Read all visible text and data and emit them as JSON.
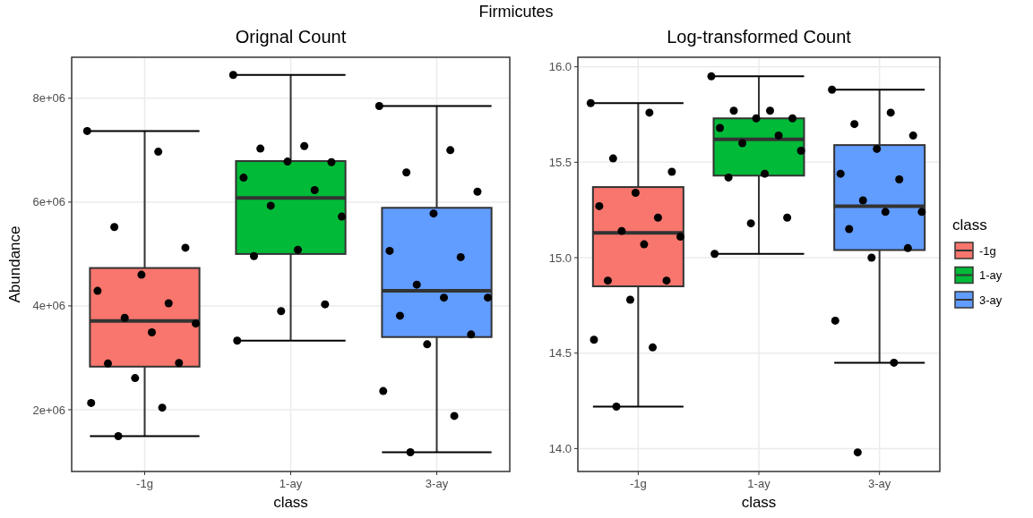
{
  "chart_data": [
    {
      "type": "box",
      "title": "Orignal Count",
      "xlabel": "class",
      "ylabel": "Abundance",
      "annotations": [
        "Firmicutes"
      ],
      "categories": [
        "-1g",
        "1-ay",
        "3-ay"
      ],
      "ylim": [
        810000,
        8790000
      ],
      "yticks": [
        {
          "value": 2000000,
          "label": "2e+06"
        },
        {
          "value": 4000000,
          "label": "4e+06"
        },
        {
          "value": 6000000,
          "label": "6e+06"
        },
        {
          "value": 8000000,
          "label": "8e+06"
        }
      ],
      "grid": true,
      "series": [
        {
          "type": "box",
          "colors": [
            "#f8766d",
            "#00ba38",
            "#619cff"
          ],
          "boxes": [
            {
              "low": 1490000,
              "q1": 2830000,
              "median": 3710000,
              "q3": 4730000,
              "high": 7370000
            },
            {
              "low": 3330000,
              "q1": 5000000,
              "median": 6080000,
              "q3": 6790000,
              "high": 8450000
            },
            {
              "low": 1180000,
              "q1": 3400000,
              "median": 4290000,
              "q3": 5890000,
              "high": 7850000
            }
          ]
        },
        {
          "type": "scatter",
          "color": "#000000",
          "x": [
            "-1g",
            "-1g",
            "-1g",
            "-1g",
            "-1g",
            "-1g",
            "-1g",
            "-1g",
            "-1g",
            "-1g",
            "-1g",
            "-1g",
            "-1g",
            "-1g",
            "-1g",
            "-1g",
            "1-ay",
            "1-ay",
            "1-ay",
            "1-ay",
            "1-ay",
            "1-ay",
            "1-ay",
            "1-ay",
            "1-ay",
            "1-ay",
            "1-ay",
            "1-ay",
            "1-ay",
            "1-ay",
            "3-ay",
            "3-ay",
            "3-ay",
            "3-ay",
            "3-ay",
            "3-ay",
            "3-ay",
            "3-ay",
            "3-ay",
            "3-ay",
            "3-ay",
            "3-ay",
            "3-ay",
            "3-ay",
            "3-ay",
            "3-ay"
          ],
          "values": [
            7370000,
            6970000,
            5520000,
            5120000,
            4600000,
            4290000,
            4050000,
            3770000,
            3660000,
            3490000,
            2890000,
            2900000,
            2610000,
            2130000,
            2040000,
            1490000,
            8450000,
            7080000,
            7030000,
            6770000,
            6780000,
            6470000,
            6230000,
            5930000,
            5720000,
            5080000,
            4960000,
            4030000,
            3900000,
            3330000,
            7850000,
            7000000,
            6570000,
            6200000,
            5780000,
            5060000,
            4940000,
            4410000,
            4160000,
            4160000,
            3810000,
            3450000,
            3260000,
            2360000,
            1880000,
            1180000
          ]
        }
      ]
    },
    {
      "type": "box",
      "title": "Log-transformed Count",
      "xlabel": "class",
      "legend": "right",
      "legend_title": "class",
      "categories": [
        "-1g",
        "1-ay",
        "3-ay"
      ],
      "ylim": [
        13.88,
        16.05
      ],
      "yticks": [
        {
          "value": 14,
          "label": "14.0"
        },
        14.5,
        {
          "value": 15,
          "label": "15.0"
        },
        15.5,
        {
          "value": 16,
          "label": "16.0"
        }
      ],
      "grid": true,
      "series": [
        {
          "type": "box",
          "name": "-1g",
          "color": "#f8766d",
          "boxes": [
            {
              "low": 14.22,
              "q1": 14.85,
              "median": 15.13,
              "q3": 15.37,
              "high": 15.81
            },
            null,
            null
          ]
        },
        {
          "type": "box",
          "name": "1-ay",
          "color": "#00ba38",
          "boxes": [
            null,
            {
              "low": 15.02,
              "q1": 15.43,
              "median": 15.62,
              "q3": 15.73,
              "high": 15.95
            },
            null
          ]
        },
        {
          "type": "box",
          "name": "3-ay",
          "color": "#619cff",
          "boxes": [
            null,
            null,
            {
              "low": 14.45,
              "q1": 15.04,
              "median": 15.27,
              "q3": 15.59,
              "high": 15.88
            }
          ]
        },
        {
          "type": "scatter",
          "color": "#000000",
          "x": [
            "-1g",
            "-1g",
            "-1g",
            "-1g",
            "-1g",
            "-1g",
            "-1g",
            "-1g",
            "-1g",
            "-1g",
            "-1g",
            "-1g",
            "-1g",
            "-1g",
            "-1g",
            "-1g",
            "1-ay",
            "1-ay",
            "1-ay",
            "1-ay",
            "1-ay",
            "1-ay",
            "1-ay",
            "1-ay",
            "1-ay",
            "1-ay",
            "1-ay",
            "1-ay",
            "1-ay",
            "1-ay",
            "3-ay",
            "3-ay",
            "3-ay",
            "3-ay",
            "3-ay",
            "3-ay",
            "3-ay",
            "3-ay",
            "3-ay",
            "3-ay",
            "3-ay",
            "3-ay",
            "3-ay",
            "3-ay",
            "3-ay",
            "3-ay"
          ],
          "values": [
            15.81,
            15.76,
            15.52,
            15.45,
            15.34,
            15.27,
            15.21,
            15.14,
            15.11,
            15.07,
            14.88,
            14.88,
            14.78,
            14.57,
            14.53,
            14.22,
            15.95,
            15.77,
            15.77,
            15.73,
            15.73,
            15.68,
            15.64,
            15.6,
            15.56,
            15.44,
            15.42,
            15.21,
            15.18,
            15.02,
            15.88,
            15.76,
            15.7,
            15.64,
            15.57,
            15.44,
            15.41,
            15.3,
            15.24,
            15.24,
            15.15,
            15.05,
            15,
            14.67,
            14.45,
            13.98
          ]
        }
      ]
    }
  ]
}
